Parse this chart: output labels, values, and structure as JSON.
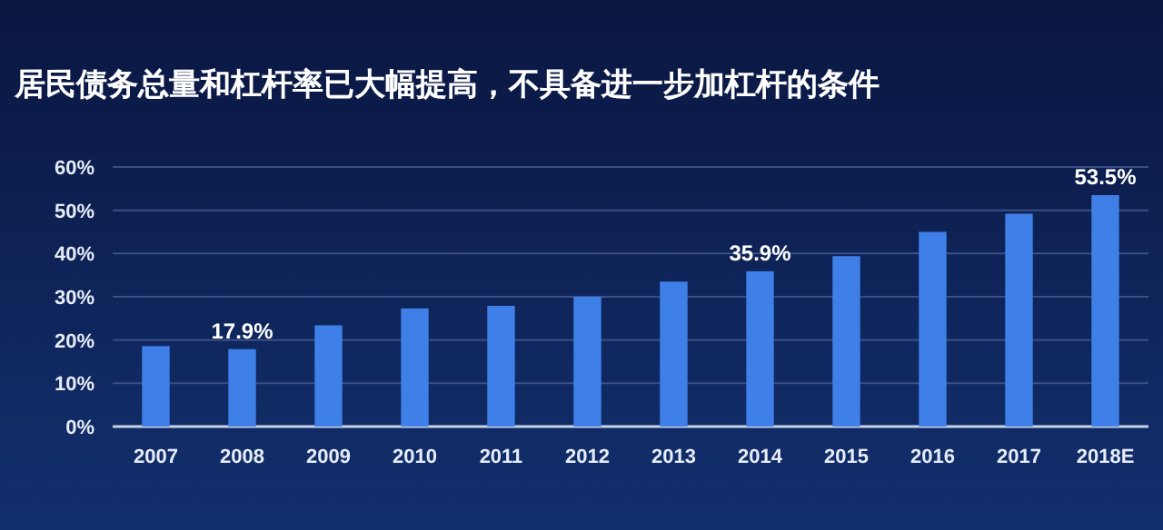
{
  "chart_data": {
    "type": "bar",
    "title": "居民债务总量和杠杆率已大幅提高，不具备进一步加杠杆的条件",
    "categories": [
      "2007",
      "2008",
      "2009",
      "2010",
      "2011",
      "2012",
      "2013",
      "2014",
      "2015",
      "2016",
      "2017",
      "2018E"
    ],
    "values": [
      18.6,
      17.9,
      23.4,
      27.3,
      27.9,
      30.0,
      33.5,
      35.9,
      39.4,
      45.0,
      49.2,
      53.5
    ],
    "value_labels": [
      null,
      "17.9%",
      null,
      null,
      null,
      null,
      null,
      "35.9%",
      null,
      null,
      null,
      "53.5%"
    ],
    "color": "#3f7fe8",
    "ylim": [
      0,
      60
    ],
    "yticks": [
      {
        "value": 0,
        "label": "0%"
      },
      {
        "value": 10,
        "label": "10%"
      },
      {
        "value": 20,
        "label": "20%"
      },
      {
        "value": 30,
        "label": "30%"
      },
      {
        "value": 40,
        "label": "40%"
      },
      {
        "value": 50,
        "label": "50%"
      },
      {
        "value": 60,
        "label": "60%"
      }
    ],
    "grid": "y"
  }
}
